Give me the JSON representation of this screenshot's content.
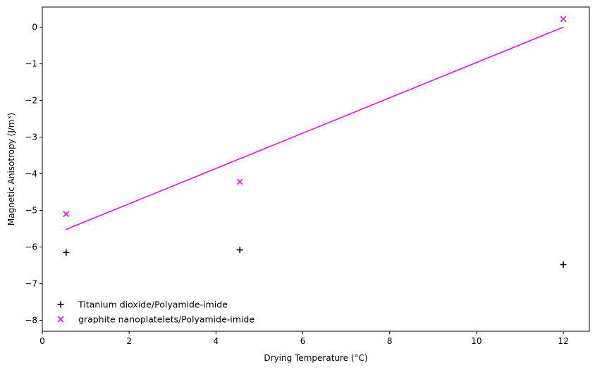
{
  "chart_data": {
    "type": "scatter",
    "title": "",
    "xlabel": "Drying Temperature (°C)",
    "ylabel": "Magnetic Anisotropy (J/m³)",
    "xlim": [
      0,
      12.6
    ],
    "ylim": [
      -8.3,
      0.55
    ],
    "x_ticks": [
      0,
      2,
      4,
      6,
      8,
      10,
      12
    ],
    "x_tick_labels": [
      "0",
      "2",
      "4",
      "6",
      "8",
      "10",
      "12"
    ],
    "y_ticks": [
      0,
      -1,
      -2,
      -3,
      -4,
      -5,
      -6,
      -7,
      -8
    ],
    "y_tick_labels": [
      "0",
      "−1",
      "−2",
      "−3",
      "−4",
      "−5",
      "−6",
      "−7",
      "−8"
    ],
    "grid": false,
    "legend_position": "lower-left",
    "series": [
      {
        "name": "Titanium dioxide/Polyamide-imide",
        "marker": "plus",
        "color": "#000000",
        "x": [
          0.55,
          4.55,
          12.0
        ],
        "y": [
          -6.15,
          -6.08,
          -6.48
        ]
      },
      {
        "name": "graphite nanoplatelets/Polyamide-imide",
        "marker": "x",
        "color": "#ff00ff",
        "x": [
          0.55,
          4.55,
          12.0
        ],
        "y": [
          -5.1,
          -4.22,
          0.22
        ]
      }
    ],
    "fit_line": {
      "color": "#ff00ff",
      "x": [
        0.55,
        12.0
      ],
      "y": [
        -5.52,
        0.0
      ]
    }
  }
}
